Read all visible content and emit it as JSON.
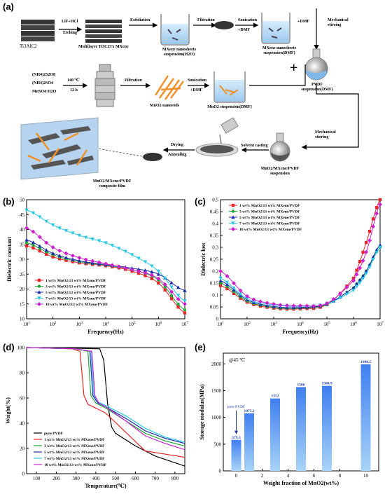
{
  "panel_labels": {
    "a": "(a)",
    "b": "(b)",
    "c": "(c)",
    "d": "(d)",
    "e": "(e)"
  },
  "schematic": {
    "ti3alc2": "Ti3AlC2",
    "etching_reagent": "LiF+HCl",
    "etching": "Etching",
    "multilayer": "Multilayer Ti3C2Tx MXene",
    "exfoliation": "Exfoliation",
    "mxene_h2o": "MXene nanosheets suspension(H2O)",
    "filtration": "Filtration",
    "sonication": "Sonication",
    "plus_dmf": "+DMF",
    "mxene_dmf": "MXene nanosheets suspension(DMF)",
    "top_plus_dmf": "+DMF",
    "mechanical_stirring": "Mechanical stirring",
    "plus_sign": "+",
    "pvdf_susp": "PVDF suspension(DMF)",
    "reagent1": "(NH4)2S2O8",
    "reagent2": "(NH4)2SO4",
    "reagent3": "MnSO4·H2O",
    "temp": "140 ℃",
    "time": "12 h",
    "filtration2": "Filtration",
    "mno2_nanorods": "MnO2 nanorods",
    "sonication2": "Sonication",
    "plus_dmf2": "+DMF",
    "mno2_dmf": "MnO2 suspension(DMF)",
    "drying": "Drying",
    "annealing": "Annealing",
    "composite_film": "MnO2/MXene/PVDF composite film",
    "solvent_casting": "Solvent casting",
    "mechanical_stirring2": "Mechanical stirring",
    "mno2_mxene_pvdf_susp": "MnO2/MXene/PVDF suspension"
  },
  "chart_data": [
    {
      "panel": "b",
      "type": "line",
      "xlabel": "Frequency(Hz)",
      "ylabel": "Dielectric constant",
      "xscale": "log",
      "xlim": [
        10,
        10000000
      ],
      "ylim": [
        10,
        50
      ],
      "yticks": [
        10,
        15,
        20,
        25,
        30,
        35,
        40,
        45,
        50
      ],
      "xticks": [
        "10^1",
        "10^2",
        "10^3",
        "10^4",
        "10^5",
        "10^6",
        "10^7"
      ],
      "legend_position": "bottom-left",
      "series": [
        {
          "name": "1 wt% MnO2/13 wt% MXene/PVDF",
          "color": "#e8262a",
          "marker": "square",
          "x": [
            10,
            100,
            1000,
            10000,
            100000,
            1000000,
            10000000
          ],
          "y": [
            34.5,
            30.8,
            28.8,
            27.8,
            26.0,
            22.0,
            12.0
          ]
        },
        {
          "name": "3 wt% MnO2/13 wt% MXene/PVDF",
          "color": "#22a83a",
          "marker": "circle",
          "x": [
            10,
            100,
            1000,
            10000,
            100000,
            1000000,
            10000000
          ],
          "y": [
            35.5,
            31.5,
            29.2,
            28.0,
            26.5,
            23.0,
            13.0
          ]
        },
        {
          "name": "5 wt% MnO2/13 wt% MXene/PVDF",
          "color": "#1e2fa8",
          "marker": "triangle",
          "x": [
            10,
            100,
            1000,
            10000,
            100000,
            1000000,
            10000000
          ],
          "y": [
            36.5,
            32.0,
            29.5,
            28.2,
            27.0,
            25.0,
            19.5
          ]
        },
        {
          "name": "7 wt% MnO2/13 wt% MXene/PVDF",
          "color": "#2bc7e6",
          "marker": "triangle-down",
          "x": [
            10,
            100,
            1000,
            10000,
            100000,
            1000000,
            10000000
          ],
          "y": [
            46.5,
            41.5,
            38.0,
            35.5,
            31.5,
            26.0,
            16.0
          ]
        },
        {
          "name": "10 wt% MnO2/13 wt% MXene/PVDF",
          "color": "#cc22cc",
          "marker": "diamond",
          "x": [
            10,
            100,
            1000,
            10000,
            100000,
            1000000,
            10000000
          ],
          "y": [
            40.5,
            34.0,
            30.5,
            28.5,
            26.5,
            23.5,
            15.0
          ]
        }
      ]
    },
    {
      "panel": "c",
      "type": "line",
      "xlabel": "Frequency(Hz)",
      "ylabel": "Dielectric loss",
      "xscale": "log",
      "xlim": [
        10,
        10000000
      ],
      "ylim": [
        0.0,
        0.5
      ],
      "yticks": [
        0.0,
        0.05,
        0.1,
        0.15,
        0.2,
        0.25,
        0.3,
        0.35,
        0.4,
        0.45,
        0.5
      ],
      "xticks": [
        "10^1",
        "10^2",
        "10^3",
        "10^4",
        "10^5",
        "10^6",
        "10^7"
      ],
      "legend_position": "top-left",
      "series": [
        {
          "name": "1 wt% MnO2/13 wt% MXene/PVDF",
          "color": "#e8262a",
          "marker": "square",
          "x": [
            10,
            100,
            1000,
            10000,
            100000,
            1000000,
            3000000,
            10000000
          ],
          "y": [
            0.14,
            0.07,
            0.045,
            0.042,
            0.06,
            0.17,
            0.32,
            0.5
          ]
        },
        {
          "name": "3 wt% MnO2/13 wt% MXene/PVDF",
          "color": "#22a83a",
          "marker": "circle",
          "x": [
            10,
            100,
            1000,
            10000,
            100000,
            1000000,
            3000000,
            10000000
          ],
          "y": [
            0.15,
            0.075,
            0.048,
            0.045,
            0.06,
            0.13,
            0.2,
            0.3
          ]
        },
        {
          "name": "5 wt% MnO2/13 wt% MXene/PVDF",
          "color": "#1e2fa8",
          "marker": "triangle",
          "x": [
            10,
            100,
            1000,
            10000,
            100000,
            1000000,
            3000000,
            10000000
          ],
          "y": [
            0.16,
            0.08,
            0.052,
            0.048,
            0.062,
            0.13,
            0.2,
            0.31
          ]
        },
        {
          "name": "7 wt% MnO2/13 wt% MXene/PVDF",
          "color": "#2bc7e6",
          "marker": "triangle-down",
          "x": [
            10,
            100,
            1000,
            10000,
            100000,
            1000000,
            3000000,
            10000000
          ],
          "y": [
            0.17,
            0.085,
            0.058,
            0.052,
            0.063,
            0.12,
            0.19,
            0.3
          ]
        },
        {
          "name": "10 wt% MnO2/13 wt% MXene/PVDF",
          "color": "#cc22cc",
          "marker": "diamond",
          "x": [
            10,
            100,
            1000,
            10000,
            100000,
            1000000,
            3000000,
            10000000
          ],
          "y": [
            0.2,
            0.095,
            0.062,
            0.055,
            0.065,
            0.16,
            0.28,
            0.48
          ]
        }
      ]
    },
    {
      "panel": "d",
      "type": "line",
      "xlabel": "Temperature(℃)",
      "ylabel": "Weight(%)",
      "xlim": [
        50,
        850
      ],
      "ylim": [
        0,
        100
      ],
      "xticks": [
        100,
        200,
        300,
        400,
        500,
        600,
        700,
        800
      ],
      "yticks": [
        0,
        20,
        40,
        60,
        80,
        100
      ],
      "legend_position": "bottom-left",
      "series": [
        {
          "name": "pure PVDF",
          "color": "#000000",
          "x": [
            50,
            300,
            420,
            440,
            460,
            480,
            500,
            600,
            700,
            850
          ],
          "y": [
            100,
            99.5,
            99,
            90,
            55,
            37,
            32,
            22,
            14,
            6
          ]
        },
        {
          "name": "1 wt% MnO2/13 wt% MXene/PVDF",
          "color": "#e8262a",
          "x": [
            50,
            280,
            320,
            340,
            360,
            400,
            450,
            550,
            650,
            850
          ],
          "y": [
            100,
            99,
            97,
            62,
            55,
            52,
            48,
            33,
            18,
            13
          ]
        },
        {
          "name": "3 wt% MnO2/13 wt% MXene/PVDF",
          "color": "#22a83a",
          "x": [
            50,
            300,
            360,
            375,
            400,
            450,
            550,
            650,
            750,
            850
          ],
          "y": [
            100,
            99,
            97,
            62,
            56,
            52,
            42,
            32,
            26,
            22
          ]
        },
        {
          "name": "5 wt% MnO2/13 wt% MXene/PVDF",
          "color": "#1e2fa8",
          "x": [
            50,
            300,
            370,
            385,
            410,
            450,
            550,
            650,
            750,
            850
          ],
          "y": [
            100,
            99,
            97,
            62,
            56,
            53,
            44,
            34,
            28,
            24
          ]
        },
        {
          "name": "7 wt% MnO2/13 wt% MXene/PVDF",
          "color": "#2bc7e6",
          "x": [
            50,
            300,
            375,
            390,
            410,
            450,
            550,
            650,
            750,
            850
          ],
          "y": [
            100,
            99,
            97,
            62,
            57,
            54,
            46,
            36,
            29,
            25
          ]
        },
        {
          "name": "10 wt% MnO2/13 wt% MXene/PVDF",
          "color": "#cc22cc",
          "x": [
            50,
            300,
            380,
            395,
            415,
            450,
            550,
            650,
            750,
            850
          ],
          "y": [
            100,
            99,
            97,
            62,
            56,
            53,
            42,
            30,
            24,
            19
          ]
        }
      ]
    },
    {
      "panel": "e",
      "type": "bar",
      "xlabel": "Weight fraction of MnO2(wt%)",
      "ylabel": "Storage modulus(MPa)",
      "annotation": "@45 ℃",
      "arrow_label": "pure PVDF",
      "xlim": [
        -1,
        11
      ],
      "ylim": [
        0,
        2200
      ],
      "xticks": [
        0,
        2,
        4,
        6,
        8,
        10
      ],
      "yticks": [
        0,
        500,
        1000,
        1500,
        2000
      ],
      "x": [
        0,
        1,
        3,
        5,
        7,
        10
      ],
      "values": [
        579.3,
        1075.2,
        1353,
        1566,
        1588.9,
        1990.5
      ],
      "labels": [
        "579.3",
        "1075.2",
        "1353",
        "1566",
        "1588.9",
        "1990.5"
      ]
    }
  ]
}
